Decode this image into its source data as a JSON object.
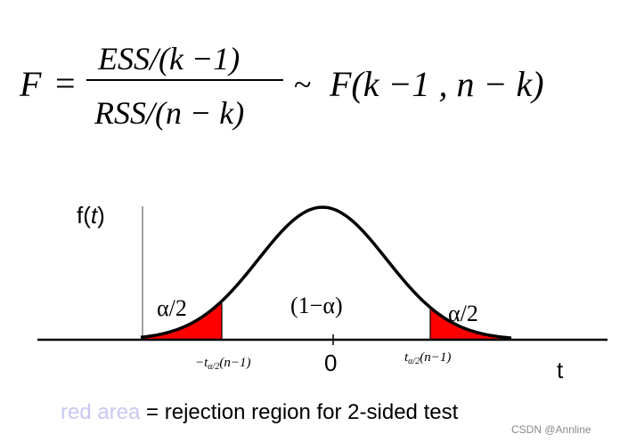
{
  "formula": {
    "lhs": "F",
    "equals": "=",
    "numerator": "ESS/(k −1)",
    "denominator": "RSS/(n − k)",
    "tilde": "~",
    "rhs": "F(k −1 , n − k)"
  },
  "plot": {
    "y_label_prefix": "f(",
    "y_label_var": "t",
    "y_label_suffix": ")",
    "x_label": "t",
    "left_tail_label": "α/2",
    "center_label": "(1−α)",
    "right_tail_label": "α/2",
    "left_critical": "−t",
    "left_critical_sub": "α/2",
    "left_critical_arg": "(n−1)",
    "center_tick": "0",
    "right_critical": "t",
    "right_critical_sub": "α/2",
    "right_critical_arg": "(n−1)",
    "tail_color": "#ff0000",
    "curve_color": "#000000"
  },
  "caption": {
    "highlight": "red area",
    "highlight_color": "#c8c8f0",
    "rest": " = rejection region for 2-sided test"
  },
  "watermark": "CSDN @Annline"
}
